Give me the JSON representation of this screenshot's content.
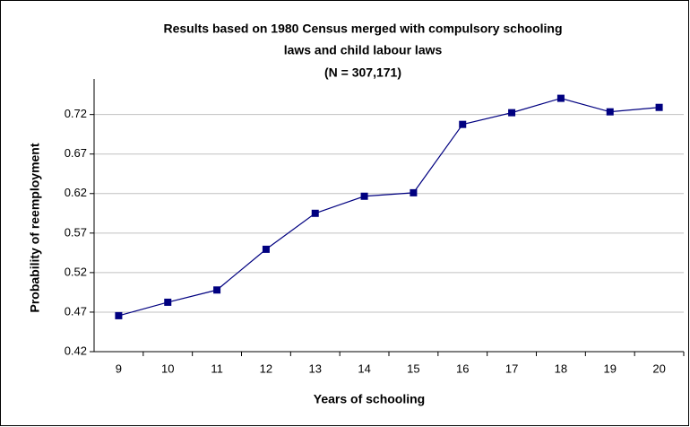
{
  "chart_data": {
    "type": "line",
    "title": [
      "Results based on 1980 Census merged with compulsory schooling",
      "laws and child labour laws",
      "(N = 307,171)"
    ],
    "x_label": "Years of schooling",
    "y_label": "Probability of reemployment",
    "categories": [
      "9",
      "10",
      "11",
      "12",
      "13",
      "14",
      "15",
      "16",
      "17",
      "18",
      "19",
      "20"
    ],
    "series": [
      {
        "name": "Probability of reemployment",
        "color": "#000080",
        "values": [
          0.4655,
          0.4825,
          0.498,
          0.5495,
          0.595,
          0.6166,
          0.621,
          0.7075,
          0.7223,
          0.7405,
          0.7234,
          0.729
        ]
      }
    ],
    "ylim": [
      0.42,
      0.765
    ],
    "yticks": [
      0.42,
      0.47,
      0.52,
      0.57,
      0.62,
      0.67,
      0.72
    ],
    "grid": true
  }
}
